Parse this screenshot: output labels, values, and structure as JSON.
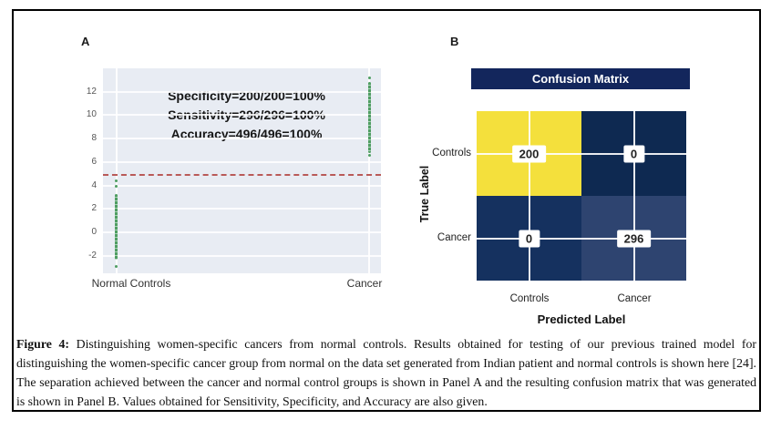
{
  "figure": {
    "panel_a_label": "A",
    "panel_b_label": "B"
  },
  "caption": {
    "prefix": "Figure 4:",
    "body": " Distinguishing women-specific cancers from normal controls. Results obtained for testing of our previous trained model for distinguishing the women-specific cancer group from normal on the data set generated from Indian patient and normal controls is shown here [24]. The separation achieved between the cancer and normal control groups is shown in Panel A and the resulting confusion matrix that was generated is shown in Panel B. Values obtained for Sensitivity, Specificity, and Accuracy are also given."
  },
  "colors": {
    "plot_bg": "#e8ecf3",
    "dot_green": "#4f9e62",
    "dot_green_light": "rgba(79,158,98,0.45)",
    "threshold_red": "#b95a58",
    "banner_navy": "#13265c",
    "cm_yellow": "#f4e03c",
    "cm_dark_top_right": "#0e2951",
    "cm_dark_bottom_left": "#15315f",
    "cm_mid_bottom_right": "#2e4470"
  },
  "chart_data": [
    {
      "type": "scatter",
      "title": "",
      "xlabel": "",
      "ylabel": "",
      "x_categories": [
        "Normal Controls",
        "Cancer"
      ],
      "y_ticks": [
        12,
        10,
        8,
        6,
        4,
        2,
        0,
        -2
      ],
      "ylim": [
        -3.5,
        14
      ],
      "grid": true,
      "threshold_y": 5,
      "annotations": [
        "Specificity=200/200=100%",
        "Sensitivity=296/296=100%",
        "Accuracy=496/496=100%"
      ],
      "series": [
        {
          "name": "Normal Controls",
          "count": 200,
          "x_frac": 0.048,
          "dense_range": [
            -2.3,
            3.3
          ],
          "outliers": [
            4.4,
            3.9,
            -2.9
          ]
        },
        {
          "name": "Cancer",
          "count": 296,
          "x_frac": 0.958,
          "dense_range": [
            6.8,
            12.85
          ],
          "outliers": [
            13.15,
            6.55
          ]
        }
      ]
    },
    {
      "type": "heatmap",
      "title": "Confusion Matrix",
      "xlabel": "Predicted Label",
      "ylabel": "True Label",
      "x_categories": [
        "Controls",
        "Cancer"
      ],
      "y_categories": [
        "Controls",
        "Cancer"
      ],
      "values": [
        [
          200,
          0
        ],
        [
          0,
          296
        ]
      ]
    }
  ]
}
